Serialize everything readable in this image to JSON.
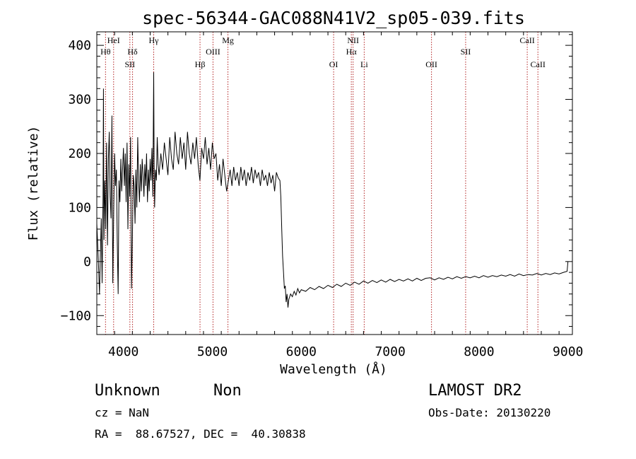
{
  "chart_data": {
    "type": "line",
    "title": "spec-56344-GAC088N41V2_sp05-039.fits",
    "xlabel": "Wavelength (Å)",
    "ylabel": "Flux (relative)",
    "xlim": [
      3700,
      9050
    ],
    "ylim": [
      -135,
      425
    ],
    "x_ticks": [
      4000,
      5000,
      6000,
      7000,
      8000,
      9000
    ],
    "y_ticks": [
      -100,
      0,
      100,
      200,
      300,
      400
    ],
    "grid": false,
    "line_color": "#000000",
    "marker_color": "#b22222",
    "series": [
      {
        "points": [
          [
            3700,
            70
          ],
          [
            3710,
            30
          ],
          [
            3720,
            -10
          ],
          [
            3730,
            -60
          ],
          [
            3740,
            10
          ],
          [
            3750,
            80
          ],
          [
            3760,
            -40
          ],
          [
            3770,
            120
          ],
          [
            3775,
            320
          ],
          [
            3780,
            40
          ],
          [
            3790,
            150
          ],
          [
            3800,
            60
          ],
          [
            3810,
            220
          ],
          [
            3820,
            30
          ],
          [
            3830,
            190
          ],
          [
            3840,
            240
          ],
          [
            3850,
            120
          ],
          [
            3860,
            80
          ],
          [
            3870,
            270
          ],
          [
            3880,
            -40
          ],
          [
            3890,
            90
          ],
          [
            3900,
            200
          ],
          [
            3910,
            140
          ],
          [
            3920,
            170
          ],
          [
            3930,
            40
          ],
          [
            3940,
            -60
          ],
          [
            3950,
            150
          ],
          [
            3960,
            110
          ],
          [
            3970,
            190
          ],
          [
            3980,
            130
          ],
          [
            4000,
            210
          ],
          [
            4010,
            140
          ],
          [
            4020,
            200
          ],
          [
            4030,
            110
          ],
          [
            4040,
            220
          ],
          [
            4050,
            60
          ],
          [
            4060,
            180
          ],
          [
            4070,
            120
          ],
          [
            4080,
            230
          ],
          [
            4090,
            -50
          ],
          [
            4100,
            40
          ],
          [
            4110,
            160
          ],
          [
            4120,
            140
          ],
          [
            4130,
            70
          ],
          [
            4140,
            170
          ],
          [
            4150,
            100
          ],
          [
            4160,
            230
          ],
          [
            4170,
            150
          ],
          [
            4180,
            110
          ],
          [
            4190,
            180
          ],
          [
            4200,
            130
          ],
          [
            4210,
            190
          ],
          [
            4220,
            160
          ],
          [
            4230,
            120
          ],
          [
            4240,
            180
          ],
          [
            4250,
            140
          ],
          [
            4260,
            200
          ],
          [
            4270,
            110
          ],
          [
            4280,
            170
          ],
          [
            4290,
            130
          ],
          [
            4300,
            190
          ],
          [
            4310,
            150
          ],
          [
            4320,
            210
          ],
          [
            4330,
            120
          ],
          [
            4340,
            350
          ],
          [
            4345,
            180
          ],
          [
            4350,
            100
          ],
          [
            4360,
            170
          ],
          [
            4370,
            150
          ],
          [
            4380,
            230
          ],
          [
            4390,
            180
          ],
          [
            4400,
            160
          ],
          [
            4420,
            200
          ],
          [
            4440,
            170
          ],
          [
            4460,
            220
          ],
          [
            4480,
            190
          ],
          [
            4500,
            160
          ],
          [
            4520,
            230
          ],
          [
            4540,
            190
          ],
          [
            4560,
            170
          ],
          [
            4580,
            240
          ],
          [
            4600,
            200
          ],
          [
            4620,
            180
          ],
          [
            4640,
            230
          ],
          [
            4660,
            190
          ],
          [
            4680,
            220
          ],
          [
            4700,
            170
          ],
          [
            4720,
            240
          ],
          [
            4740,
            200
          ],
          [
            4760,
            180
          ],
          [
            4780,
            220
          ],
          [
            4800,
            190
          ],
          [
            4820,
            230
          ],
          [
            4840,
            180
          ],
          [
            4860,
            150
          ],
          [
            4880,
            210
          ],
          [
            4900,
            190
          ],
          [
            4920,
            230
          ],
          [
            4940,
            180
          ],
          [
            4960,
            210
          ],
          [
            4980,
            170
          ],
          [
            5000,
            220
          ],
          [
            5020,
            190
          ],
          [
            5040,
            200
          ],
          [
            5060,
            150
          ],
          [
            5080,
            180
          ],
          [
            5100,
            140
          ],
          [
            5120,
            190
          ],
          [
            5140,
            160
          ],
          [
            5160,
            130
          ],
          [
            5180,
            150
          ],
          [
            5200,
            170
          ],
          [
            5220,
            140
          ],
          [
            5240,
            175
          ],
          [
            5260,
            150
          ],
          [
            5280,
            165
          ],
          [
            5300,
            140
          ],
          [
            5320,
            175
          ],
          [
            5340,
            150
          ],
          [
            5360,
            170
          ],
          [
            5380,
            140
          ],
          [
            5400,
            165
          ],
          [
            5420,
            150
          ],
          [
            5440,
            175
          ],
          [
            5460,
            145
          ],
          [
            5480,
            170
          ],
          [
            5500,
            155
          ],
          [
            5520,
            165
          ],
          [
            5540,
            140
          ],
          [
            5560,
            170
          ],
          [
            5580,
            150
          ],
          [
            5600,
            160
          ],
          [
            5620,
            140
          ],
          [
            5640,
            165
          ],
          [
            5660,
            145
          ],
          [
            5680,
            160
          ],
          [
            5700,
            130
          ],
          [
            5720,
            165
          ],
          [
            5740,
            155
          ],
          [
            5760,
            150
          ],
          [
            5770,
            120
          ],
          [
            5780,
            60
          ],
          [
            5790,
            10
          ],
          [
            5800,
            -20
          ],
          [
            5810,
            -50
          ],
          [
            5820,
            -45
          ],
          [
            5830,
            -75
          ],
          [
            5840,
            -60
          ],
          [
            5850,
            -85
          ],
          [
            5860,
            -70
          ],
          [
            5880,
            -60
          ],
          [
            5900,
            -65
          ],
          [
            5920,
            -55
          ],
          [
            5940,
            -62
          ],
          [
            5960,
            -50
          ],
          [
            5980,
            -58
          ],
          [
            6000,
            -52
          ],
          [
            6050,
            -55
          ],
          [
            6100,
            -48
          ],
          [
            6150,
            -52
          ],
          [
            6200,
            -46
          ],
          [
            6250,
            -50
          ],
          [
            6300,
            -44
          ],
          [
            6350,
            -48
          ],
          [
            6400,
            -42
          ],
          [
            6450,
            -46
          ],
          [
            6500,
            -40
          ],
          [
            6550,
            -44
          ],
          [
            6600,
            -38
          ],
          [
            6650,
            -42
          ],
          [
            6700,
            -36
          ],
          [
            6750,
            -40
          ],
          [
            6800,
            -35
          ],
          [
            6850,
            -39
          ],
          [
            6900,
            -34
          ],
          [
            6950,
            -38
          ],
          [
            7000,
            -33
          ],
          [
            7050,
            -37
          ],
          [
            7100,
            -33
          ],
          [
            7150,
            -36
          ],
          [
            7200,
            -32
          ],
          [
            7250,
            -36
          ],
          [
            7300,
            -31
          ],
          [
            7350,
            -35
          ],
          [
            7400,
            -31
          ],
          [
            7450,
            -30
          ],
          [
            7500,
            -34
          ],
          [
            7550,
            -30
          ],
          [
            7600,
            -33
          ],
          [
            7650,
            -29
          ],
          [
            7700,
            -32
          ],
          [
            7750,
            -28
          ],
          [
            7800,
            -31
          ],
          [
            7850,
            -28
          ],
          [
            7900,
            -30
          ],
          [
            7950,
            -27
          ],
          [
            8000,
            -30
          ],
          [
            8050,
            -26
          ],
          [
            8100,
            -29
          ],
          [
            8150,
            -26
          ],
          [
            8200,
            -28
          ],
          [
            8250,
            -25
          ],
          [
            8300,
            -27
          ],
          [
            8350,
            -24
          ],
          [
            8400,
            -27
          ],
          [
            8450,
            -23
          ],
          [
            8500,
            -26
          ],
          [
            8550,
            -24
          ],
          [
            8600,
            -25
          ],
          [
            8650,
            -22
          ],
          [
            8700,
            -25
          ],
          [
            8750,
            -22
          ],
          [
            8800,
            -24
          ],
          [
            8850,
            -21
          ],
          [
            8900,
            -23
          ],
          [
            8950,
            -20
          ],
          [
            8990,
            -18
          ],
          [
            9000,
            0
          ]
        ]
      }
    ],
    "line_markers": [
      {
        "wavelength": 3798,
        "label": "Hθ",
        "row": 1
      },
      {
        "wavelength": 3889,
        "label": "HeI",
        "row": 0
      },
      {
        "wavelength": 4072,
        "label": "SII",
        "row": 2
      },
      {
        "wavelength": 4102,
        "label": "Hδ",
        "row": 1
      },
      {
        "wavelength": 4340,
        "label": "Hγ",
        "row": 0
      },
      {
        "wavelength": 4861,
        "label": "Hβ",
        "row": 2
      },
      {
        "wavelength": 5007,
        "label": "OIII",
        "row": 1
      },
      {
        "wavelength": 5175,
        "label": "Mg",
        "row": 0
      },
      {
        "wavelength": 6364,
        "label": "OI",
        "row": 2
      },
      {
        "wavelength": 6563,
        "label": "Hα",
        "row": 1
      },
      {
        "wavelength": 6583,
        "label": "NII",
        "row": 0
      },
      {
        "wavelength": 6708,
        "label": "Li",
        "row": 2
      },
      {
        "wavelength": 7465,
        "label": "OII",
        "row": 2
      },
      {
        "wavelength": 7849,
        "label": "SII",
        "row": 1
      },
      {
        "wavelength": 8542,
        "label": "CaII",
        "row": 0
      },
      {
        "wavelength": 8662,
        "label": "CaII",
        "row": 2
      }
    ]
  },
  "info": {
    "object_class": "Unknown",
    "subclass": "Non",
    "survey": "LAMOST DR2",
    "redshift": "cz = NaN",
    "obs_date": "Obs-Date: 20130220",
    "coords": "RA =  88.67527, DEC =  40.30838"
  }
}
